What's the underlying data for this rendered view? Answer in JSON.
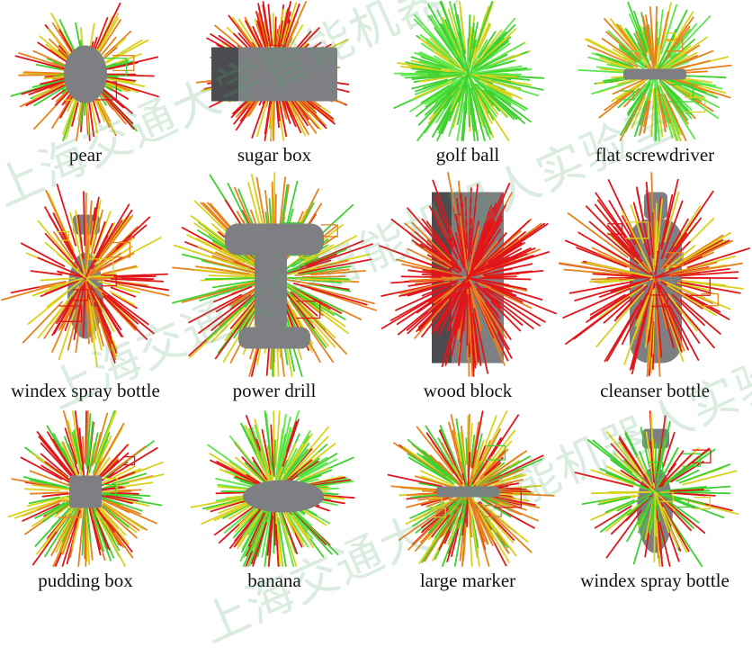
{
  "colors": {
    "red": "#e0161b",
    "orange": "#e8821e",
    "yellow": "#d9d21c",
    "green": "#3ed130",
    "bright_green": "#5be84a",
    "object_gray": "#7d7f82",
    "object_dark": "#4a4c50",
    "watermark": "#50aa6e"
  },
  "panels": [
    {
      "id": "pear",
      "label": "pear",
      "object": "blob",
      "palette": [
        "red",
        "green",
        "yellow",
        "orange"
      ],
      "density": 140,
      "boxes": true
    },
    {
      "id": "sugar-box",
      "label": "sugar box",
      "object": "box",
      "palette": [
        "red",
        "orange",
        "yellow",
        "red"
      ],
      "density": 220,
      "boxes": true
    },
    {
      "id": "golf-ball",
      "label": "golf ball",
      "object": "none",
      "palette": [
        "green",
        "bright_green",
        "green",
        "yellow"
      ],
      "density": 260,
      "boxes": false
    },
    {
      "id": "flat-screwdriver",
      "label": "flat screwdriver",
      "object": "rod",
      "palette": [
        "green",
        "yellow",
        "bright_green",
        "orange"
      ],
      "density": 200,
      "boxes": true
    },
    {
      "id": "windex-spray-bottle",
      "label": "windex spray bottle",
      "object": "bottle",
      "palette": [
        "red",
        "yellow",
        "orange",
        "red"
      ],
      "density": 140,
      "boxes": true
    },
    {
      "id": "power-drill",
      "label": "power drill",
      "object": "drill",
      "palette": [
        "yellow",
        "green",
        "red",
        "orange"
      ],
      "density": 240,
      "boxes": true
    },
    {
      "id": "wood-block",
      "label": "wood block",
      "object": "block",
      "palette": [
        "red",
        "red",
        "orange",
        "red"
      ],
      "density": 230,
      "boxes": false
    },
    {
      "id": "cleanser-bottle",
      "label": "cleanser bottle",
      "object": "tallbottle",
      "palette": [
        "red",
        "orange",
        "yellow",
        "red"
      ],
      "density": 170,
      "boxes": true
    },
    {
      "id": "pudding-box",
      "label": "pudding box",
      "object": "small",
      "palette": [
        "yellow",
        "green",
        "red",
        "orange"
      ],
      "density": 200,
      "boxes": true
    },
    {
      "id": "banana",
      "label": "banana",
      "object": "banana",
      "palette": [
        "green",
        "bright_green",
        "yellow",
        "red"
      ],
      "density": 240,
      "boxes": false
    },
    {
      "id": "large-marker",
      "label": "large marker",
      "object": "rod",
      "palette": [
        "yellow",
        "orange",
        "green",
        "red"
      ],
      "density": 240,
      "boxes": true
    },
    {
      "id": "windex-spray-bottle-2",
      "label": "windex spray bottle",
      "object": "bottle",
      "palette": [
        "green",
        "yellow",
        "red",
        "green"
      ],
      "density": 120,
      "boxes": true
    }
  ],
  "watermark": {
    "text": "上海交通大学智能机器人实验室"
  }
}
